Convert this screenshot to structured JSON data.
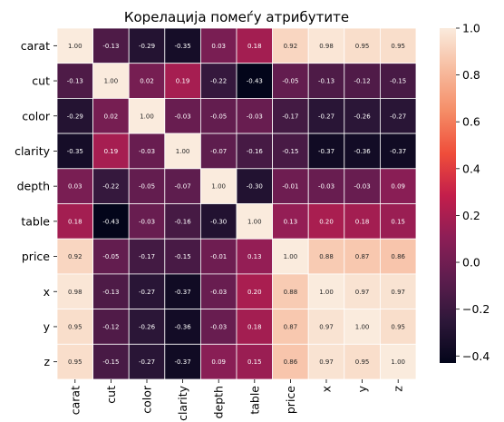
{
  "chart_data": {
    "type": "heatmap",
    "title": "Корелација помеѓу атрибутите",
    "x_labels": [
      "carat",
      "cut",
      "color",
      "clarity",
      "depth",
      "table",
      "price",
      "x",
      "y",
      "z"
    ],
    "y_labels": [
      "carat",
      "cut",
      "color",
      "clarity",
      "depth",
      "table",
      "price",
      "x",
      "y",
      "z"
    ],
    "cell_labels": [
      [
        "1.00",
        "-0.13",
        "-0.29",
        "-0.35",
        "0.03",
        "0.18",
        "0.92",
        "0.98",
        "0.95",
        "0.95"
      ],
      [
        "-0.13",
        "1.00",
        "0.02",
        "0.19",
        "-0.22",
        "-0.43",
        "-0.05",
        "-0.13",
        "-0.12",
        "-0.15"
      ],
      [
        "-0.29",
        "0.02",
        "1.00",
        "-0.03",
        "-0.05",
        "-0.03",
        "-0.17",
        "-0.27",
        "-0.26",
        "-0.27"
      ],
      [
        "-0.35",
        "0.19",
        "-0.03",
        "1.00",
        "-0.07",
        "-0.16",
        "-0.15",
        "-0.37",
        "-0.36",
        "-0.37"
      ],
      [
        "0.03",
        "-0.22",
        "-0.05",
        "-0.07",
        "1.00",
        "-0.30",
        "-0.01",
        "-0.03",
        "-0.03",
        "0.09"
      ],
      [
        "0.18",
        "-0.43",
        "-0.03",
        "-0.16",
        "-0.30",
        "1.00",
        "0.13",
        "0.20",
        "0.18",
        "0.15"
      ],
      [
        "0.92",
        "-0.05",
        "-0.17",
        "-0.15",
        "-0.01",
        "0.13",
        "1.00",
        "0.88",
        "0.87",
        "0.86"
      ],
      [
        "0.98",
        "-0.13",
        "-0.27",
        "-0.37",
        "-0.03",
        "0.20",
        "0.88",
        "1.00",
        "0.97",
        "0.97"
      ],
      [
        "0.95",
        "-0.12",
        "-0.26",
        "-0.36",
        "-0.03",
        "0.18",
        "0.87",
        "0.97",
        "1.00",
        "0.95"
      ],
      [
        "0.95",
        "-0.15",
        "-0.27",
        "-0.37",
        "0.09",
        "0.15",
        "0.86",
        "0.97",
        "0.95",
        "1.00"
      ]
    ],
    "colorbar": {
      "min": -0.43,
      "max": 1.0,
      "tick_labels": [
        "1.0",
        "0.8",
        "0.6",
        "0.4",
        "0.2",
        "0.0",
        "−0.2",
        "−0.4"
      ],
      "tick_values": [
        1.0,
        0.8,
        0.6,
        0.4,
        0.2,
        0.0,
        -0.2,
        -0.4
      ]
    },
    "colormap": "rocket",
    "colormap_stops": [
      "#03051a",
      "#2d1739",
      "#5d1d4e",
      "#8d1e56",
      "#c31e4b",
      "#ef4d3a",
      "#f58c66",
      "#f7bb9e",
      "#faebdd"
    ],
    "grid": false,
    "cell_border_color": "#ffffff"
  }
}
